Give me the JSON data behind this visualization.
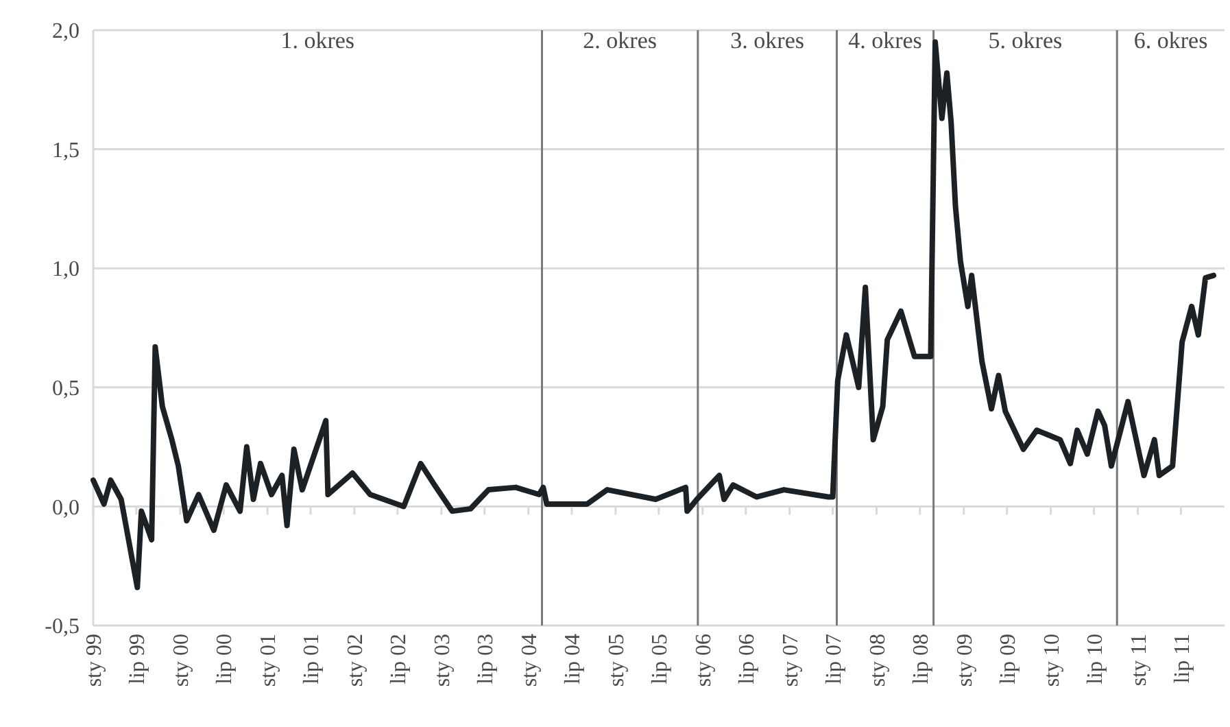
{
  "chart_data": {
    "type": "line",
    "x": [
      "1999-01-01",
      "1999-02-15",
      "1999-03-15",
      "1999-04-28",
      "1999-07-05",
      "1999-07-22",
      "1999-09-03",
      "1999-09-18",
      "1999-10-18",
      "1999-11-27",
      "1999-12-24",
      "2000-01-28",
      "2000-03-18",
      "2000-05-21",
      "2000-07-12",
      "2000-09-08",
      "2000-10-06",
      "2000-11-03",
      "2000-12-03",
      "2001-01-18",
      "2001-03-03",
      "2001-03-24",
      "2001-04-22",
      "2001-05-27",
      "2001-09-03",
      "2001-09-12",
      "2001-12-24",
      "2002-03-08",
      "2002-07-27",
      "2002-10-06",
      "2002-12-03",
      "2003-02-15",
      "2003-05-03",
      "2003-07-18",
      "2003-11-09",
      "2004-02-15",
      "2004-03-03",
      "2004-03-18",
      "2004-09-03",
      "2004-11-27",
      "2005-06-18",
      "2005-10-22",
      "2005-10-28",
      "2005-12-08",
      "2006-03-12",
      "2006-04-01",
      "2006-05-09",
      "2006-08-15",
      "2006-12-08",
      "2007-06-12",
      "2007-07-01",
      "2007-07-22",
      "2007-08-27",
      "2007-10-18",
      "2007-11-15",
      "2007-12-18",
      "2008-01-27",
      "2008-02-15",
      "2008-04-12",
      "2008-06-08",
      "2008-08-15",
      "2008-09-03",
      "2008-10-01",
      "2008-10-22",
      "2008-11-09",
      "2008-11-27",
      "2008-12-18",
      "2009-01-18",
      "2009-02-03",
      "2009-03-18",
      "2009-04-27",
      "2009-05-27",
      "2009-06-24",
      "2009-09-08",
      "2009-11-03",
      "2010-02-09",
      "2010-03-24",
      "2010-04-22",
      "2010-06-03",
      "2010-07-18",
      "2010-08-15",
      "2010-09-12",
      "2010-11-21",
      "2011-01-27",
      "2011-03-12",
      "2011-04-01",
      "2011-05-27",
      "2011-07-06",
      "2011-08-15",
      "2011-09-12",
      "2011-10-12",
      "2011-11-15"
    ],
    "series": [
      {
        "color": "#1c2126",
        "values": [
          0.11,
          0.01,
          0.11,
          0.03,
          -0.34,
          -0.02,
          -0.14,
          0.67,
          0.42,
          0.28,
          0.17,
          -0.06,
          0.05,
          -0.1,
          0.09,
          -0.02,
          0.25,
          0.03,
          0.18,
          0.05,
          0.13,
          -0.08,
          0.24,
          0.07,
          0.36,
          0.05,
          0.14,
          0.05,
          0.0,
          0.18,
          0.09,
          -0.02,
          -0.01,
          0.07,
          0.08,
          0.05,
          0.08,
          0.01,
          0.01,
          0.07,
          0.03,
          0.08,
          -0.02,
          0.03,
          0.13,
          0.03,
          0.09,
          0.04,
          0.07,
          0.04,
          0.04,
          0.53,
          0.72,
          0.5,
          0.92,
          0.28,
          0.42,
          0.7,
          0.82,
          0.63,
          0.63,
          1.95,
          1.63,
          1.82,
          1.61,
          1.26,
          1.03,
          0.84,
          0.97,
          0.61,
          0.41,
          0.55,
          0.4,
          0.24,
          0.32,
          0.28,
          0.18,
          0.32,
          0.22,
          0.4,
          0.34,
          0.17,
          0.44,
          0.13,
          0.28,
          0.13,
          0.17,
          0.69,
          0.84,
          0.72,
          0.96,
          0.97
        ]
      }
    ],
    "xlim": [
      "1999-01-01",
      "2011-12-31"
    ],
    "xticks": [
      {
        "value": "1999-01-01",
        "label": "sty 99"
      },
      {
        "value": "1999-07-01",
        "label": "lip 99"
      },
      {
        "value": "2000-01-01",
        "label": "sty 00"
      },
      {
        "value": "2000-07-01",
        "label": "lip 00"
      },
      {
        "value": "2001-01-01",
        "label": "sty 01"
      },
      {
        "value": "2001-07-01",
        "label": "lip 01"
      },
      {
        "value": "2002-01-01",
        "label": "sty 02"
      },
      {
        "value": "2002-07-01",
        "label": "lip 02"
      },
      {
        "value": "2003-01-01",
        "label": "sty 03"
      },
      {
        "value": "2003-07-01",
        "label": "lip 03"
      },
      {
        "value": "2004-01-01",
        "label": "sty 04"
      },
      {
        "value": "2004-07-01",
        "label": "lip 04"
      },
      {
        "value": "2005-01-01",
        "label": "sty 05"
      },
      {
        "value": "2005-07-01",
        "label": "lip 05"
      },
      {
        "value": "2006-01-01",
        "label": "sty 06"
      },
      {
        "value": "2006-07-01",
        "label": "lip 06"
      },
      {
        "value": "2007-01-01",
        "label": "sty 07"
      },
      {
        "value": "2007-07-01",
        "label": "lip 07"
      },
      {
        "value": "2008-01-01",
        "label": "sty 08"
      },
      {
        "value": "2008-07-01",
        "label": "lip 08"
      },
      {
        "value": "2009-01-01",
        "label": "sty 09"
      },
      {
        "value": "2009-07-01",
        "label": "lip 09"
      },
      {
        "value": "2010-01-01",
        "label": "sty 10"
      },
      {
        "value": "2010-07-01",
        "label": "lip 10"
      },
      {
        "value": "2011-01-01",
        "label": "sty 11"
      },
      {
        "value": "2011-07-01",
        "label": "lip 11"
      }
    ],
    "ylim": [
      -0.5,
      2.0
    ],
    "yticks": [
      {
        "value": -0.5,
        "label": "-0,5"
      },
      {
        "value": 0,
        "label": "0,0"
      },
      {
        "value": 0.5,
        "label": "0,5"
      },
      {
        "value": 1.0,
        "label": "1,0"
      },
      {
        "value": 1.5,
        "label": "1,5"
      },
      {
        "value": 2.0,
        "label": "2,0"
      }
    ],
    "grid": "y",
    "marker": "none",
    "line_style": "solid",
    "ref_lines": [
      {
        "axis": "x",
        "value": "2004-02-27",
        "color": "#7a7a7a"
      },
      {
        "axis": "x",
        "value": "2005-12-12",
        "color": "#7a7a7a"
      },
      {
        "axis": "x",
        "value": "2007-07-18",
        "color": "#7a7a7a"
      },
      {
        "axis": "x",
        "value": "2008-08-27",
        "color": "#7a7a7a"
      },
      {
        "axis": "x",
        "value": "2010-10-06",
        "color": "#7a7a7a"
      }
    ],
    "annotations": [
      "1. okres",
      "2. okres",
      "3. okres",
      "4. okres",
      "5. okres",
      "6. okres"
    ]
  }
}
